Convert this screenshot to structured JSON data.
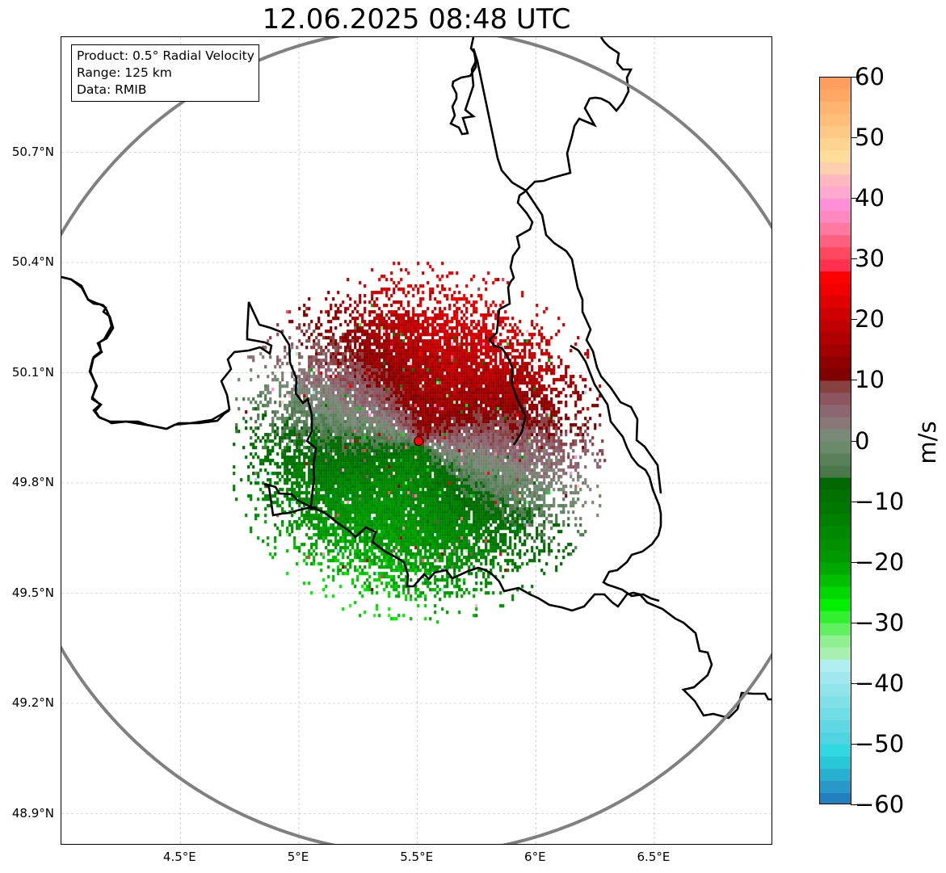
{
  "title": "12.06.2025 08:48 UTC",
  "info_box": {
    "product": "Product: 0.5° Radial Velocity",
    "range": "Range: 125 km",
    "source": "Data: RMIB"
  },
  "map": {
    "lon_range": [
      4.0,
      7.0
    ],
    "lat_range": [
      48.8,
      51.0
    ],
    "x_ticks": [
      {
        "value": 4.5,
        "label": "4.5°E"
      },
      {
        "value": 5.0,
        "label": "5°E"
      },
      {
        "value": 5.5,
        "label": "5.5°E"
      },
      {
        "value": 6.0,
        "label": "6°E"
      },
      {
        "value": 6.5,
        "label": "6.5°E"
      }
    ],
    "y_ticks": [
      {
        "value": 48.9,
        "label": "48.9°N"
      },
      {
        "value": 49.2,
        "label": "49.2°N"
      },
      {
        "value": 49.5,
        "label": "49.5°N"
      },
      {
        "value": 49.8,
        "label": "49.8°N"
      },
      {
        "value": 50.1,
        "label": "50.1°N"
      },
      {
        "value": 50.4,
        "label": "50.4°N"
      },
      {
        "value": 50.7,
        "label": "50.7°N"
      }
    ],
    "radar_site": {
      "lon": 5.505,
      "lat": 49.914
    },
    "range_km": 125,
    "grid": true,
    "colors": {
      "range_ring": "#808080",
      "borders": "#000000",
      "site_marker": "#ff0000",
      "grid": "#b0b0b0"
    },
    "echo_regions": [
      {
        "field": "outbound",
        "description_color": "#a00000",
        "center": [
          5.3,
          50.18
        ]
      },
      {
        "field": "inbound",
        "description_color": "#009000",
        "center": [
          5.85,
          49.68
        ]
      }
    ]
  },
  "colorbar": {
    "label": "m/s",
    "vmin": -60,
    "vmax": 60,
    "ticks": [
      {
        "value": 60,
        "label": "60"
      },
      {
        "value": 50,
        "label": "50"
      },
      {
        "value": 40,
        "label": "40"
      },
      {
        "value": 30,
        "label": "30"
      },
      {
        "value": 20,
        "label": "20"
      },
      {
        "value": 10,
        "label": "10"
      },
      {
        "value": 0,
        "label": "0"
      },
      {
        "value": -10,
        "label": "−10"
      },
      {
        "value": -20,
        "label": "−20"
      },
      {
        "value": -30,
        "label": "−30"
      },
      {
        "value": -40,
        "label": "−40"
      },
      {
        "value": -50,
        "label": "−50"
      },
      {
        "value": -60,
        "label": "−60"
      }
    ],
    "bands": [
      {
        "from": 58,
        "to": 60,
        "color": "#ff9e5e"
      },
      {
        "from": 56,
        "to": 58,
        "color": "#ffa866"
      },
      {
        "from": 54,
        "to": 56,
        "color": "#ffb470"
      },
      {
        "from": 52,
        "to": 54,
        "color": "#ffbe7a"
      },
      {
        "from": 50,
        "to": 52,
        "color": "#ffc885"
      },
      {
        "from": 48,
        "to": 50,
        "color": "#ffd390"
      },
      {
        "from": 46,
        "to": 48,
        "color": "#ffde9a"
      },
      {
        "from": 44,
        "to": 46,
        "color": "#ffd0b0"
      },
      {
        "from": 42,
        "to": 44,
        "color": "#ffb8c0"
      },
      {
        "from": 40,
        "to": 42,
        "color": "#ffa8d0"
      },
      {
        "from": 38,
        "to": 40,
        "color": "#ff90d8"
      },
      {
        "from": 36,
        "to": 38,
        "color": "#ff88c0"
      },
      {
        "from": 34,
        "to": 36,
        "color": "#ff78a0"
      },
      {
        "from": 32,
        "to": 34,
        "color": "#ff6080"
      },
      {
        "from": 30,
        "to": 32,
        "color": "#ff4860"
      },
      {
        "from": 28,
        "to": 30,
        "color": "#ff3050"
      },
      {
        "from": 26,
        "to": 28,
        "color": "#ff0000"
      },
      {
        "from": 24,
        "to": 26,
        "color": "#f00000"
      },
      {
        "from": 22,
        "to": 24,
        "color": "#e00000"
      },
      {
        "from": 20,
        "to": 22,
        "color": "#d00000"
      },
      {
        "from": 18,
        "to": 20,
        "color": "#c00000"
      },
      {
        "from": 16,
        "to": 18,
        "color": "#b00000"
      },
      {
        "from": 14,
        "to": 16,
        "color": "#a00000"
      },
      {
        "from": 12,
        "to": 14,
        "color": "#900000"
      },
      {
        "from": 10,
        "to": 12,
        "color": "#800000"
      },
      {
        "from": 8,
        "to": 10,
        "color": "#884040"
      },
      {
        "from": 6,
        "to": 8,
        "color": "#8c5560"
      },
      {
        "from": 4,
        "to": 6,
        "color": "#8c6670"
      },
      {
        "from": 2,
        "to": 4,
        "color": "#8a7878"
      },
      {
        "from": 0,
        "to": 2,
        "color": "#7a8a78"
      },
      {
        "from": -2,
        "to": 0,
        "color": "#6a8a6a"
      },
      {
        "from": -4,
        "to": -2,
        "color": "#5a805a"
      },
      {
        "from": -6,
        "to": -4,
        "color": "#4a784a"
      },
      {
        "from": -8,
        "to": -6,
        "color": "#006800"
      },
      {
        "from": -10,
        "to": -8,
        "color": "#007000"
      },
      {
        "from": -12,
        "to": -10,
        "color": "#007800"
      },
      {
        "from": -14,
        "to": -12,
        "color": "#008000"
      },
      {
        "from": -16,
        "to": -14,
        "color": "#008800"
      },
      {
        "from": -18,
        "to": -16,
        "color": "#009000"
      },
      {
        "from": -20,
        "to": -18,
        "color": "#009800"
      },
      {
        "from": -22,
        "to": -20,
        "color": "#00a800"
      },
      {
        "from": -24,
        "to": -22,
        "color": "#00c000"
      },
      {
        "from": -26,
        "to": -24,
        "color": "#00d800"
      },
      {
        "from": -28,
        "to": -26,
        "color": "#00f000"
      },
      {
        "from": -30,
        "to": -28,
        "color": "#30f030"
      },
      {
        "from": -32,
        "to": -30,
        "color": "#60f060"
      },
      {
        "from": -34,
        "to": -32,
        "color": "#90f090"
      },
      {
        "from": -36,
        "to": -34,
        "color": "#a8f0b0"
      },
      {
        "from": -38,
        "to": -36,
        "color": "#b0eef0"
      },
      {
        "from": -40,
        "to": -38,
        "color": "#a0e8ee"
      },
      {
        "from": -42,
        "to": -40,
        "color": "#90e4ea"
      },
      {
        "from": -44,
        "to": -42,
        "color": "#80e0e8"
      },
      {
        "from": -46,
        "to": -44,
        "color": "#70dce6"
      },
      {
        "from": -48,
        "to": -46,
        "color": "#60d8e4"
      },
      {
        "from": -50,
        "to": -48,
        "color": "#50d4e2"
      },
      {
        "from": -52,
        "to": -50,
        "color": "#30d8e0"
      },
      {
        "from": -54,
        "to": -52,
        "color": "#28c8d8"
      },
      {
        "from": -56,
        "to": -54,
        "color": "#28b0d0"
      },
      {
        "from": -58,
        "to": -56,
        "color": "#2898c8"
      },
      {
        "from": -60,
        "to": -58,
        "color": "#2080c0"
      }
    ]
  }
}
